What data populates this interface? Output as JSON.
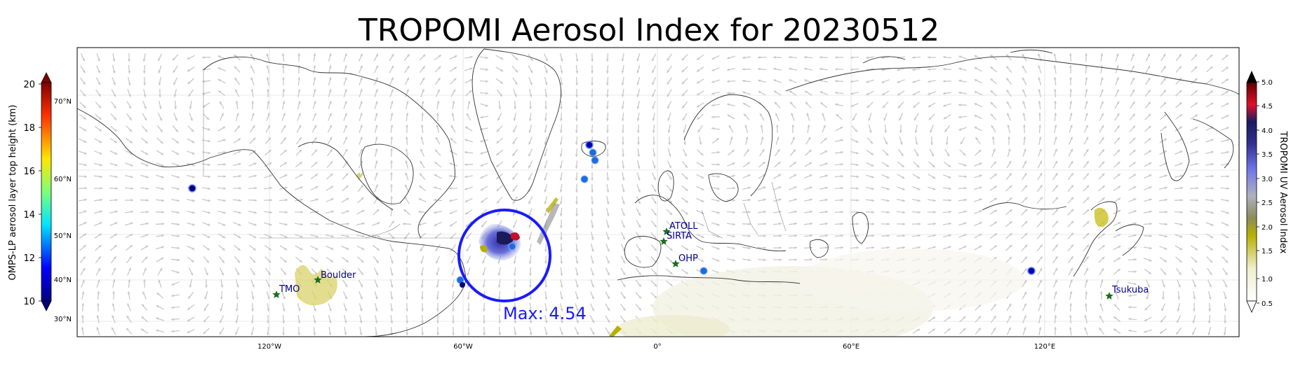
{
  "title": "TROPOMI Aerosol Index for 20230512",
  "left_colorbar": {
    "label": "OMPS-LP aerosol layer top height (km)",
    "ticks": [
      "20",
      "18",
      "16",
      "14",
      "12",
      "10"
    ],
    "range": [
      10,
      20
    ]
  },
  "right_colorbar": {
    "label": "TROPOMI UV Aerosol Index",
    "ticks": [
      "5.0",
      "4.5",
      "4.0",
      "3.5",
      "3.0",
      "2.5",
      "2.0",
      "1.5",
      "1.0",
      "0.5"
    ],
    "range": [
      0.5,
      5.0
    ]
  },
  "lat_labels": [
    "70°N",
    "60°N",
    "50°N",
    "40°N",
    "30°N"
  ],
  "lon_labels": [
    "120°W",
    "60°W",
    "0°",
    "60°E",
    "120°E"
  ],
  "stations": [
    {
      "name": "TMO"
    },
    {
      "name": "Boulder"
    },
    {
      "name": "ATOLL"
    },
    {
      "name": "SIRTA"
    },
    {
      "name": "OHP"
    },
    {
      "name": "Tsukuba"
    }
  ],
  "max_label": "Max: 4.54",
  "colors": {
    "max_circle": "#1a1aff",
    "station_marker": "#1b6e1b",
    "station_label": "#00008b",
    "omps_dot": "#1f6fe0",
    "wind_arrow": "#c8c8c8"
  }
}
